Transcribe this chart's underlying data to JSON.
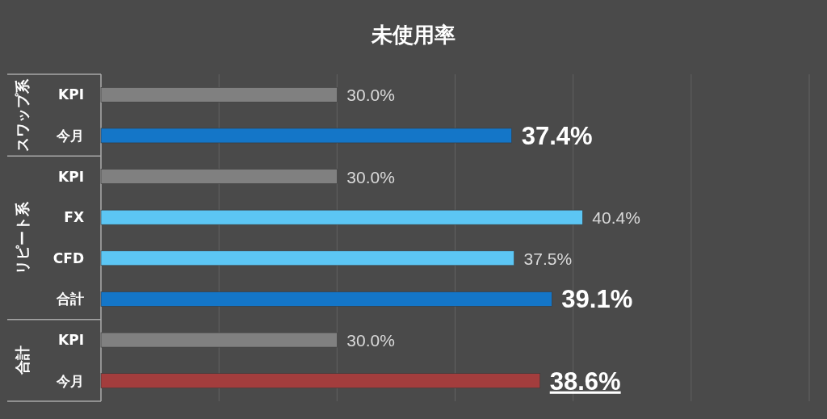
{
  "chart_data": {
    "type": "bar",
    "orientation": "horizontal",
    "title": "未使用率",
    "categories": [
      "KPI",
      "今月",
      "KPI",
      "FX",
      "CFD",
      "合計",
      "KPI",
      "今月"
    ],
    "values": [
      30.0,
      37.4,
      30.0,
      40.4,
      37.5,
      39.1,
      30.0,
      38.6
    ],
    "colors": [
      "#808080",
      "#1476c8",
      "#808080",
      "#5cc6f4",
      "#5cc6f4",
      "#1476c8",
      "#808080",
      "#a33d3d"
    ],
    "value_labels": [
      "30.0%",
      "37.4%",
      "30.0%",
      "40.4%",
      "37.5%",
      "39.1%",
      "30.0%",
      "38.6%"
    ],
    "xlim": [
      20,
      50
    ],
    "xticks": [
      {
        "value": 20,
        "label": null
      },
      {
        "value": 25,
        "label": null
      },
      {
        "value": 30,
        "label": null
      },
      {
        "value": 35,
        "label": null
      },
      {
        "value": 40,
        "label": null
      },
      {
        "value": 45,
        "label": null
      },
      {
        "value": 50,
        "label": null
      }
    ],
    "grid": "x",
    "tick_labels": "y",
    "annotations": [
      "スワップ系",
      "リピート系",
      "合計"
    ]
  }
}
